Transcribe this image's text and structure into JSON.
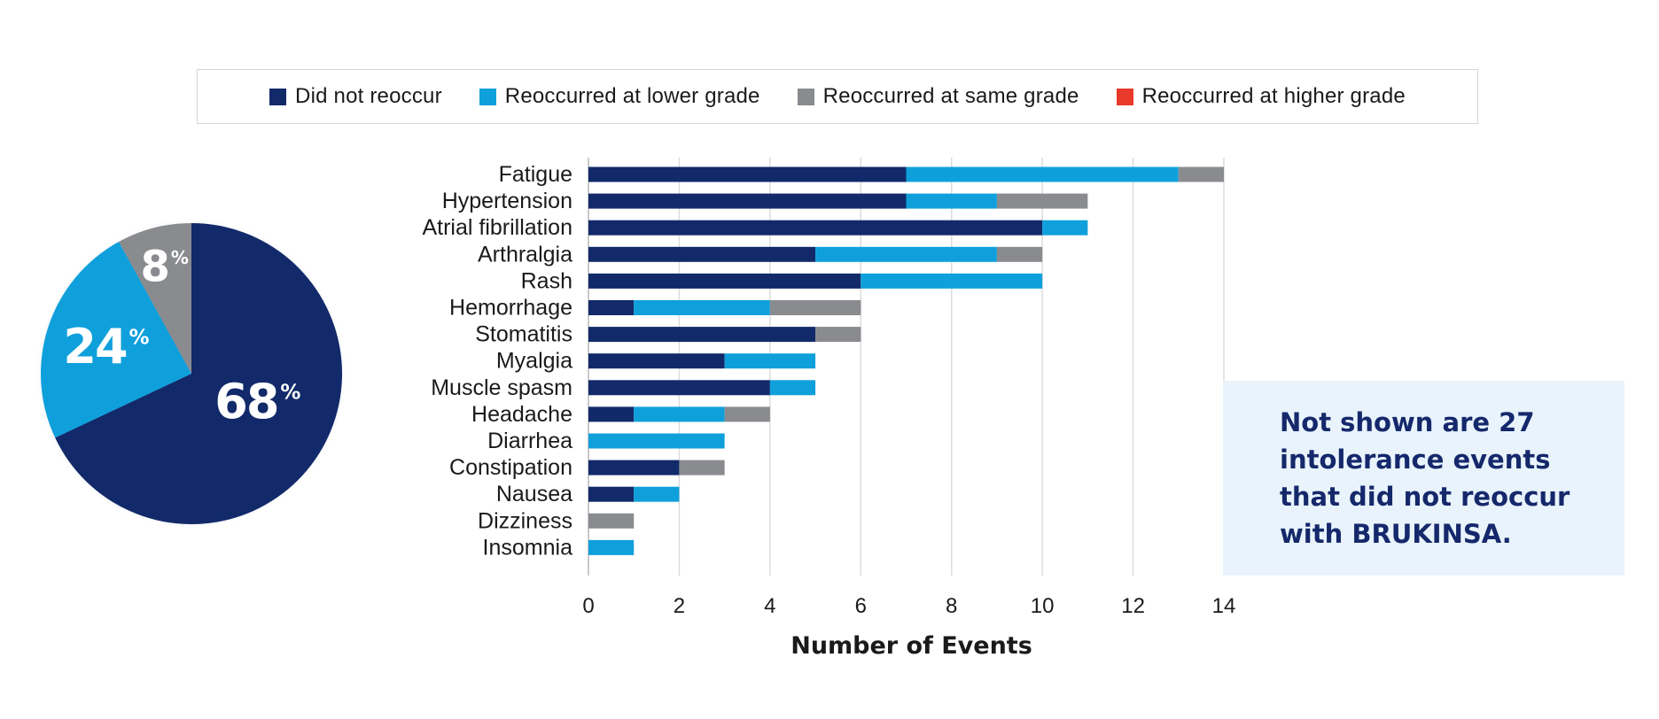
{
  "legend": {
    "items": [
      {
        "label": "Did not reoccur",
        "color": "#122a6a"
      },
      {
        "label": "Reoccurred at lower grade",
        "color": "#0fa0dc"
      },
      {
        "label": "Reoccurred at same grade",
        "color": "#898b8f"
      },
      {
        "label": "Reoccurred at higher grade",
        "color": "#e8392a"
      }
    ]
  },
  "note": {
    "text": "Not shown are 27 intolerance events that did not reoccur with BRUKINSA."
  },
  "chart_data": [
    {
      "type": "pie",
      "slices": [
        {
          "value": 68,
          "label": "68%",
          "color": "#122a6a"
        },
        {
          "value": 24,
          "label": "24%",
          "color": "#0fa0dc"
        },
        {
          "value": 8,
          "label": "8%",
          "color": "#898b8f"
        }
      ]
    },
    {
      "type": "bar",
      "orientation": "horizontal",
      "stacked": true,
      "categories": [
        "Fatigue",
        "Hypertension",
        "Atrial fibrillation",
        "Arthralgia",
        "Rash",
        "Hemorrhage",
        "Stomatitis",
        "Myalgia",
        "Muscle spasm",
        "Headache",
        "Diarrhea",
        "Constipation",
        "Nausea",
        "Dizziness",
        "Insomnia"
      ],
      "series": [
        {
          "name": "Did not reoccur",
          "color": "#122a6a",
          "values": [
            7,
            7,
            10,
            5,
            6,
            1,
            5,
            3,
            4,
            1,
            0,
            2,
            1,
            0,
            0
          ]
        },
        {
          "name": "Reoccurred at lower grade",
          "color": "#0fa0dc",
          "values": [
            6,
            2,
            1,
            4,
            4,
            3,
            0,
            2,
            1,
            2,
            3,
            0,
            1,
            0,
            1
          ]
        },
        {
          "name": "Reoccurred at same grade",
          "color": "#898b8f",
          "values": [
            1,
            2,
            0,
            1,
            0,
            2,
            1,
            0,
            0,
            1,
            0,
            1,
            0,
            1,
            0
          ]
        },
        {
          "name": "Reoccurred at higher grade",
          "color": "#e8392a",
          "values": [
            0,
            0,
            0,
            0,
            0,
            0,
            0,
            0,
            0,
            0,
            0,
            0,
            0,
            0,
            0
          ]
        }
      ],
      "xlabel": "Number of Events",
      "xlim": [
        0,
        14
      ],
      "xticks": [
        0,
        2,
        4,
        6,
        8,
        10,
        12,
        14
      ],
      "grid": true
    }
  ]
}
